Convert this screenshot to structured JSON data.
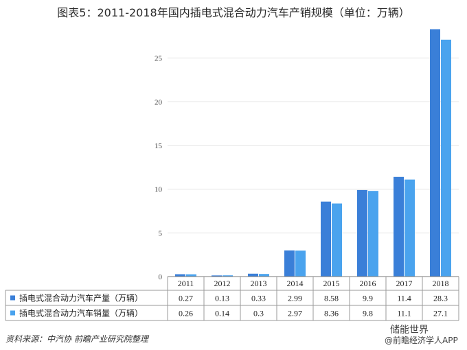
{
  "chart_data": {
    "type": "bar",
    "title": "图表5：2011-2018年国内插电式混合动力汽车产销规模（单位：万辆）",
    "categories": [
      "2011",
      "2012",
      "2013",
      "2014",
      "2015",
      "2016",
      "2017",
      "2018"
    ],
    "series": [
      {
        "name": "插电式混合动力汽车产量（万辆）",
        "values": [
          0.27,
          0.13,
          0.33,
          2.99,
          8.58,
          9.9,
          11.4,
          28.3
        ],
        "labels": [
          "0.27",
          "0.13",
          "0.33",
          "2.99",
          "8.58",
          "9.9",
          "11.4",
          "28.3"
        ],
        "color": "#3a7fd8"
      },
      {
        "name": "插电式混合动力汽车销量（万辆）",
        "values": [
          0.26,
          0.14,
          0.3,
          2.97,
          8.36,
          9.8,
          11.1,
          27.1
        ],
        "labels": [
          "0.26",
          "0.14",
          "0.3",
          "2.97",
          "8.36",
          "9.8",
          "11.1",
          "27.1"
        ],
        "color": "#4aa3ee"
      }
    ],
    "yticks": [
      "0",
      "5",
      "10",
      "15",
      "20",
      "25"
    ],
    "ylim": [
      0,
      28.5
    ],
    "grid": true,
    "legend": "data-table"
  },
  "source": "资料来源：中汽协 前瞻产业研究院整理",
  "watermark": {
    "line1": "储能世界",
    "line2": "@前瞻经济学人APP"
  }
}
